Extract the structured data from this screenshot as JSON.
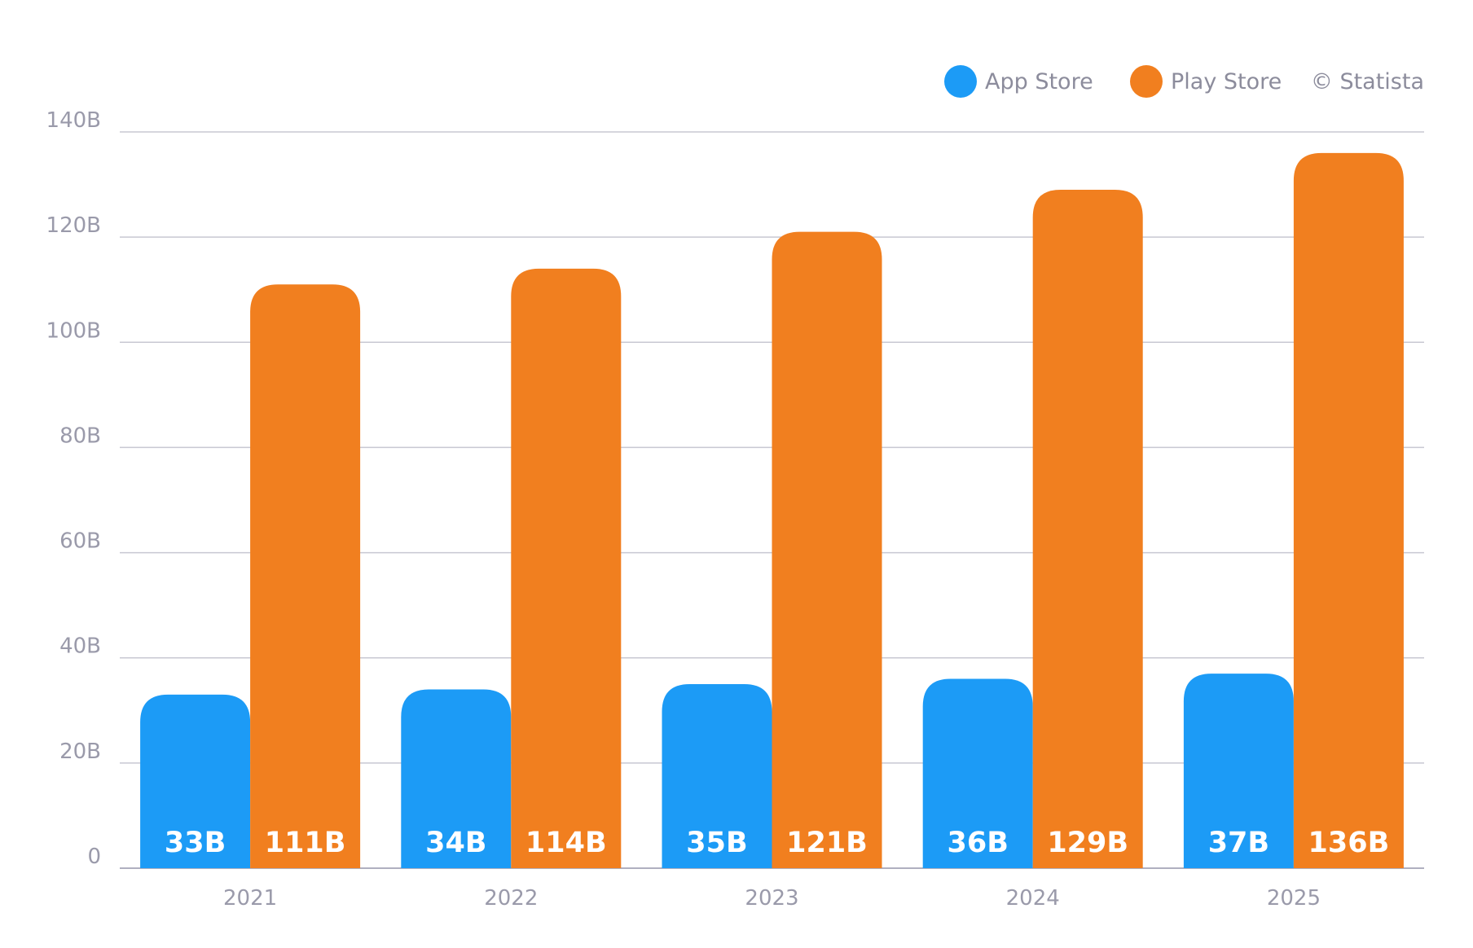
{
  "chart_data": {
    "type": "bar",
    "categories": [
      "2021",
      "2022",
      "2023",
      "2024",
      "2025"
    ],
    "series": [
      {
        "name": "App Store",
        "values": [
          33,
          34,
          35,
          36,
          37
        ],
        "labels": [
          "33B",
          "34B",
          "35B",
          "36B",
          "37B"
        ],
        "color": "#1c9bf6"
      },
      {
        "name": "Play Store",
        "values": [
          111,
          114,
          121,
          129,
          136
        ],
        "labels": [
          "111B",
          "114B",
          "121B",
          "129B",
          "136B"
        ],
        "color": "#f17f1f"
      }
    ],
    "ylim": [
      0,
      140
    ],
    "yticks": [
      0,
      20,
      40,
      60,
      80,
      100,
      120,
      140
    ],
    "ytick_labels": [
      "0",
      "20B",
      "40B",
      "60B",
      "80B",
      "100B",
      "120B",
      "140B"
    ],
    "grid": true,
    "legend_position": "top-right",
    "credit": "© Statista"
  }
}
